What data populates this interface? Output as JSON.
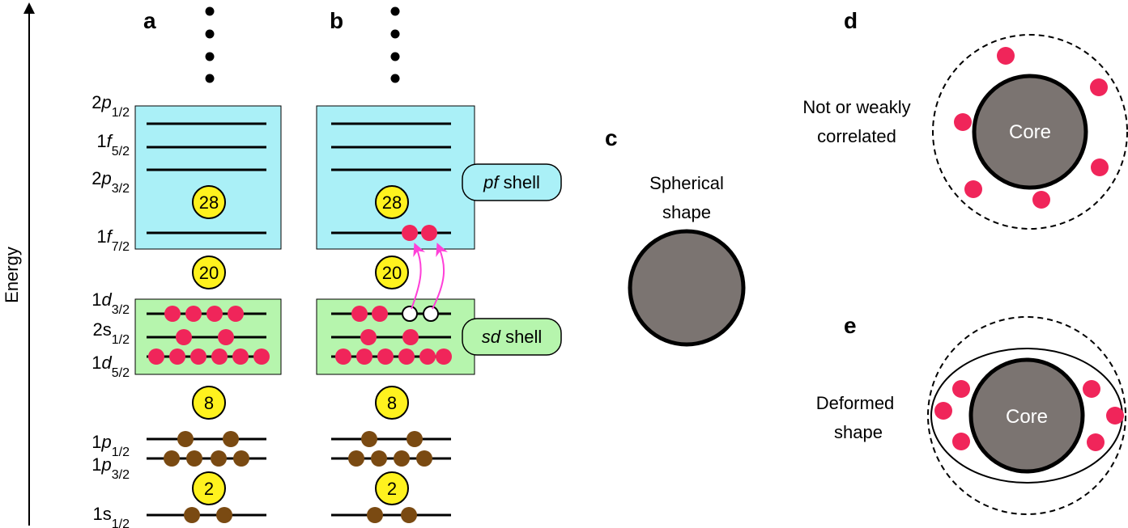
{
  "axis": {
    "label": "Energy"
  },
  "panels": {
    "a": {
      "letter": "a"
    },
    "b": {
      "letter": "b"
    },
    "c": {
      "letter": "c",
      "caption_line1": "Spherical",
      "caption_line2": "shape"
    },
    "d": {
      "letter": "d",
      "caption_line1": "Not or weakly",
      "caption_line2": "correlated",
      "core_label": "Core"
    },
    "e": {
      "letter": "e",
      "caption_line1": "Deformed",
      "caption_line2": "shape",
      "core_label": "Core"
    }
  },
  "levels": [
    {
      "id": "2p12",
      "n": "2",
      "l": "p",
      "j": "1/2",
      "italic": true
    },
    {
      "id": "1f52",
      "n": "1",
      "l": "f",
      "j": "5/2",
      "italic": true
    },
    {
      "id": "2p32",
      "n": "2",
      "l": "p",
      "j": "3/2",
      "italic": true
    },
    {
      "id": "1f72",
      "n": "1",
      "l": "f",
      "j": "7/2",
      "italic": true
    },
    {
      "id": "1d32",
      "n": "1",
      "l": "d",
      "j": "3/2",
      "italic": true
    },
    {
      "id": "2s12",
      "n": "2",
      "l": "s",
      "j": "1/2",
      "italic": false
    },
    {
      "id": "1d52",
      "n": "1",
      "l": "d",
      "j": "5/2",
      "italic": true
    },
    {
      "id": "1p12",
      "n": "1",
      "l": "p",
      "j": "1/2",
      "italic": true
    },
    {
      "id": "1p32",
      "n": "1",
      "l": "p",
      "j": "3/2",
      "italic": true
    },
    {
      "id": "1s12",
      "n": "1",
      "l": "s",
      "j": "1/2",
      "italic": false
    }
  ],
  "magic_numbers": [
    "28",
    "20",
    "8",
    "2"
  ],
  "shells": {
    "pf": {
      "name": "pf",
      "word": "shell"
    },
    "sd": {
      "name": "sd",
      "word": "shell"
    }
  },
  "occupancy": {
    "a": {
      "1d32": 4,
      "2s12": 2,
      "1d52": 6,
      "1p12": 2,
      "1p32": 4,
      "1s12": 2,
      "1f72": 0
    },
    "b": {
      "1d32_filled": 2,
      "1d32_holes": 2,
      "2s12": 2,
      "1d52": 6,
      "1p12": 2,
      "1p32": 4,
      "1s12": 2,
      "1f72": 2
    }
  },
  "colors": {
    "pf_shell_fill": "#aaf0f7",
    "sd_shell_fill": "#b6f5ad",
    "valence_nucleon": "#f0255a",
    "core_nucleon": "#7a4a12",
    "magic_fill": "#fff21e",
    "core_fill": "#7b7471",
    "arrow": "#ff3fd8"
  }
}
